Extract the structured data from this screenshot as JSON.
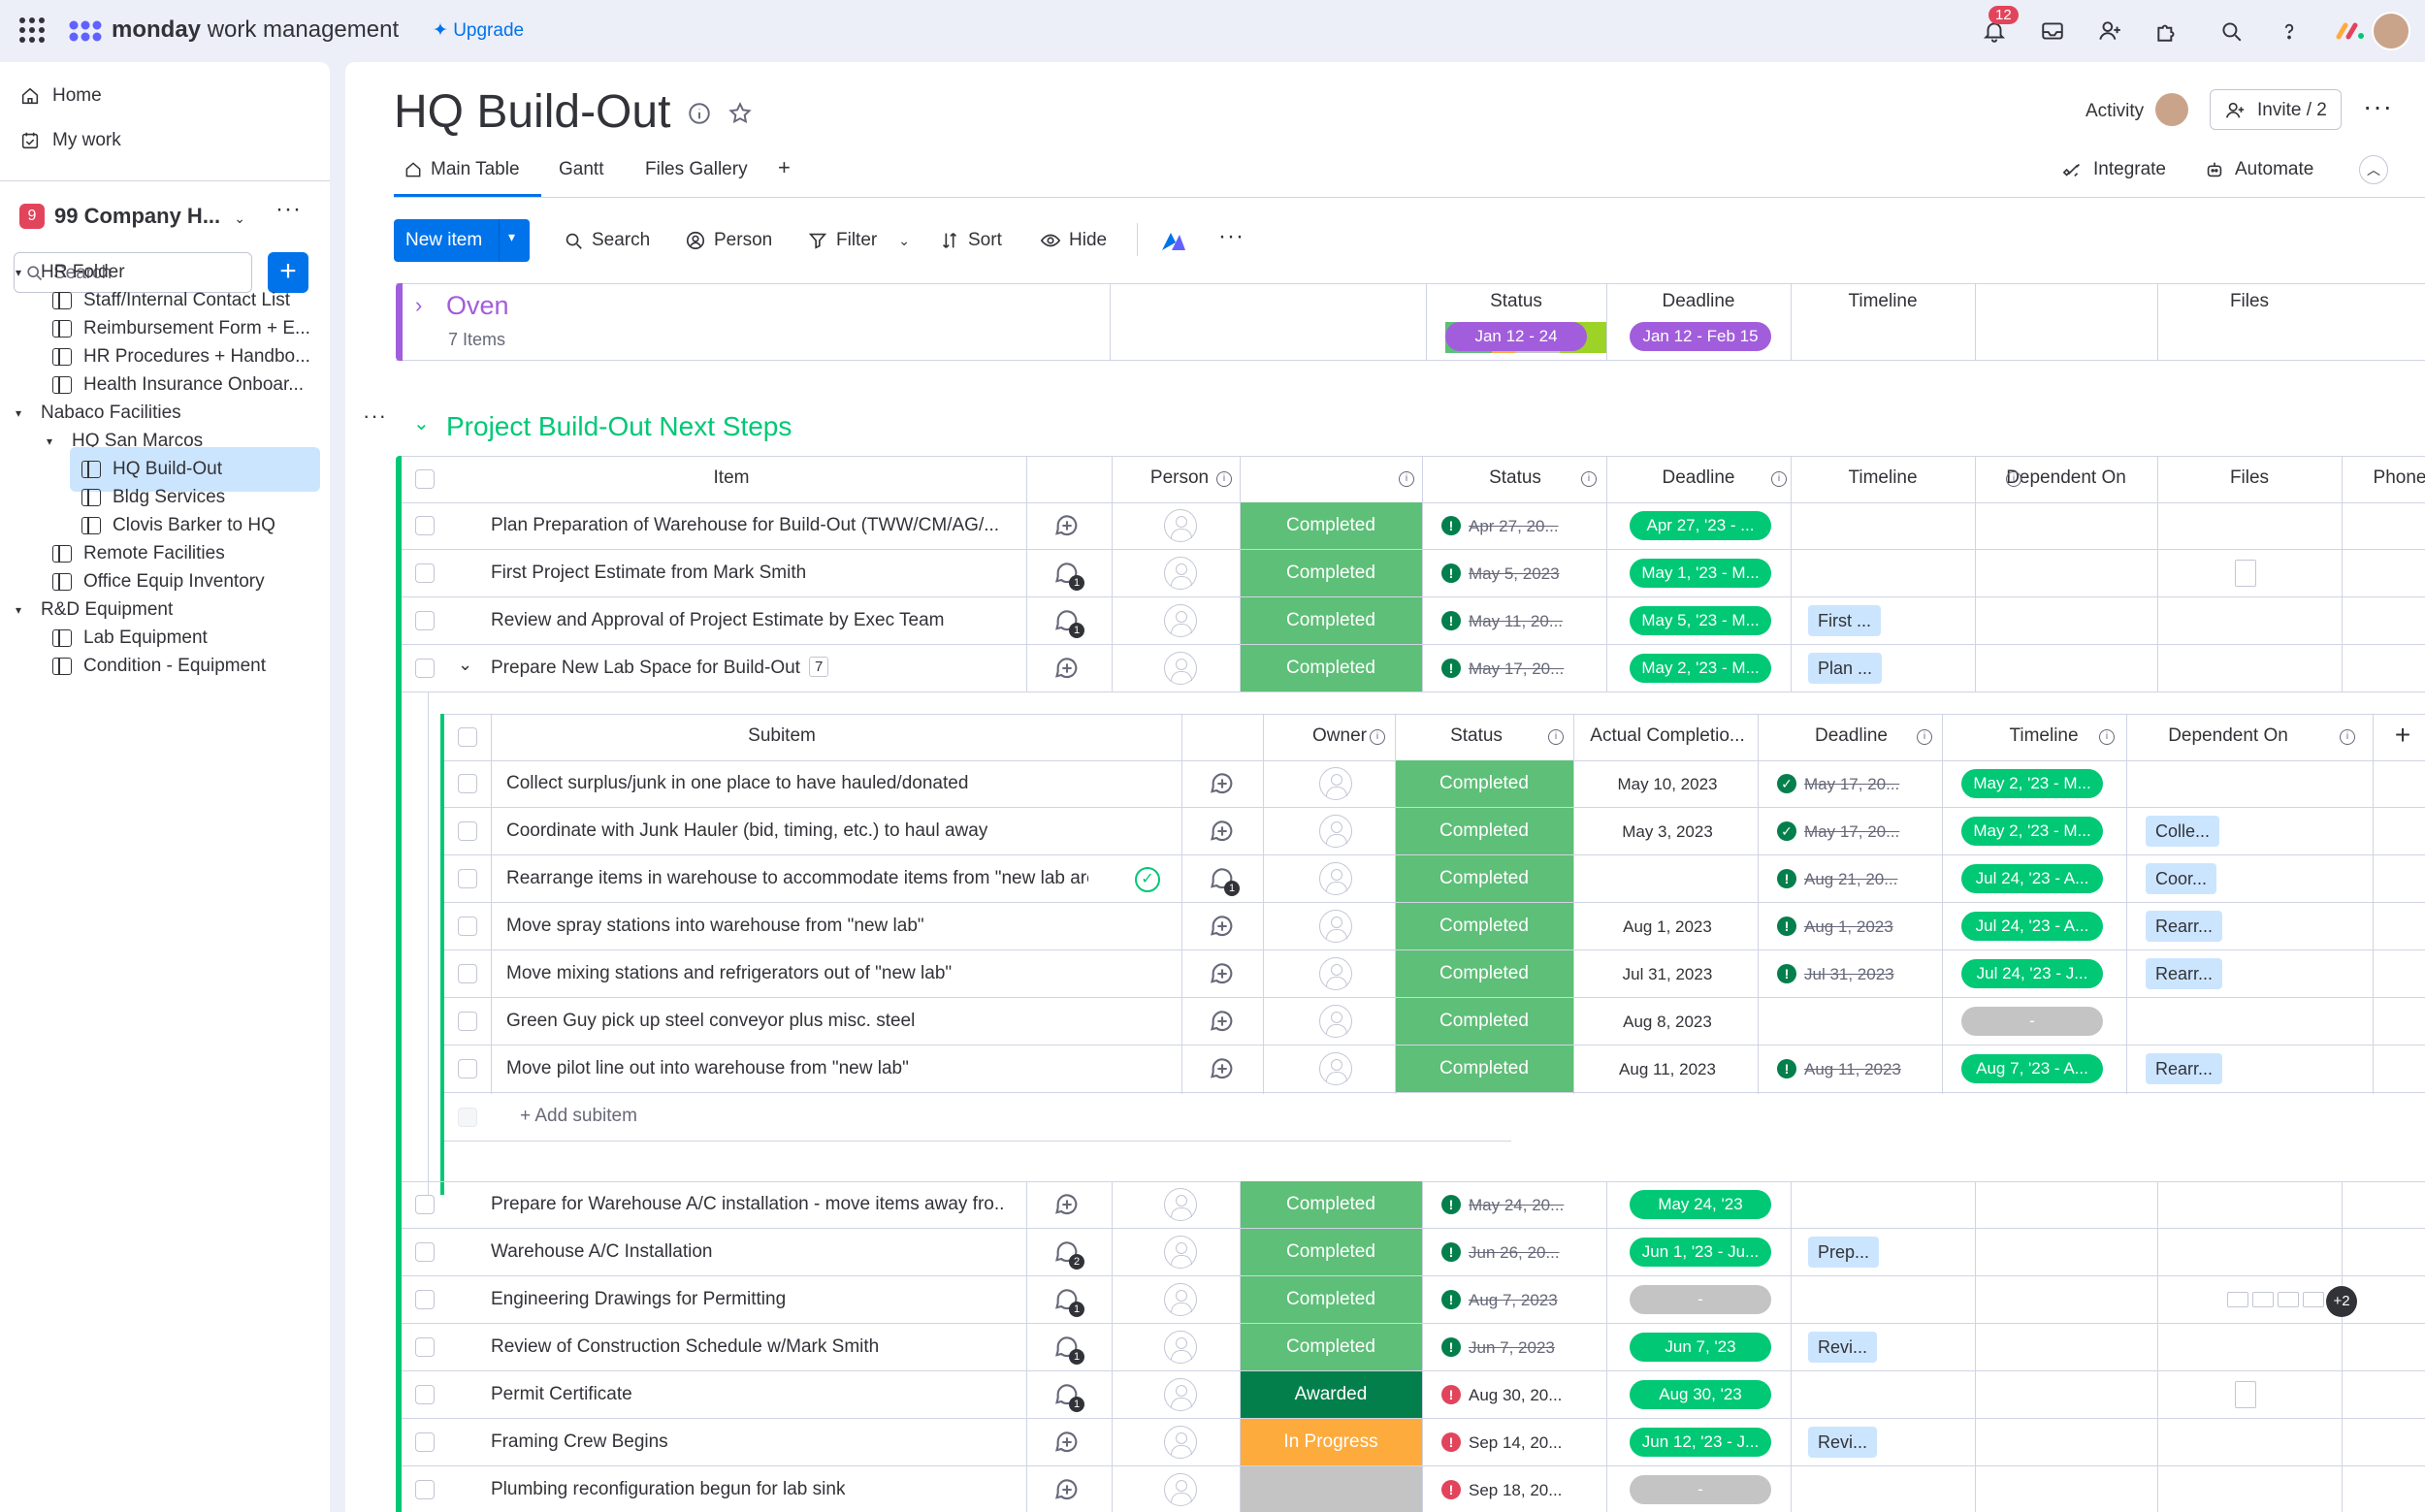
{
  "topbar": {
    "brand_bold": "monday",
    "brand_rest": "work management",
    "upgrade": "Upgrade",
    "notifications_count": "12"
  },
  "sidebar": {
    "home": "Home",
    "my_work": "My work",
    "workspace_initial": "9",
    "workspace_name": "99 Company H...",
    "search_placeholder": "Search",
    "items": [
      {
        "label": "HR Folder",
        "type": "folder"
      },
      {
        "label": "Staff/Internal Contact List",
        "type": "board"
      },
      {
        "label": "Reimbursement Form + E...",
        "type": "board"
      },
      {
        "label": "HR Procedures + Handbo...",
        "type": "board"
      },
      {
        "label": "Health Insurance Onboar...",
        "type": "board"
      },
      {
        "label": "Nabaco Facilities",
        "type": "folder"
      },
      {
        "label": "HQ San Marcos",
        "type": "folder"
      },
      {
        "label": "HQ Build-Out",
        "type": "board",
        "active": true
      },
      {
        "label": "Bldg Services",
        "type": "board"
      },
      {
        "label": "Clovis Barker to HQ",
        "type": "board"
      },
      {
        "label": "Remote Facilities",
        "type": "board"
      },
      {
        "label": "Office Equip Inventory",
        "type": "board"
      },
      {
        "label": "R&D Equipment",
        "type": "folder"
      },
      {
        "label": "Lab Equipment",
        "type": "board"
      },
      {
        "label": "Condition - Equipment",
        "type": "board"
      }
    ]
  },
  "board": {
    "title": "HQ Build-Out",
    "activity": "Activity",
    "invite": "Invite / 2",
    "tabs": [
      "Main Table",
      "Gantt",
      "Files Gallery",
      "+"
    ],
    "integrate": "Integrate",
    "automate": "Automate",
    "toolbar": {
      "new_item": "New item",
      "search": "Search",
      "person": "Person",
      "filter": "Filter",
      "sort": "Sort",
      "hide": "Hide"
    }
  },
  "collapsed_group": {
    "name": "Oven",
    "count": "7 Items",
    "columns": [
      "Status",
      "Deadline",
      "Timeline",
      "Files"
    ],
    "deadline": "Jan 12 - 24",
    "timeline": "Jan 12 - Feb 15",
    "color": "#a25ddc"
  },
  "group": {
    "name": "Project Build-Out Next Steps",
    "color": "#00c875",
    "columns": [
      "Item",
      "Person",
      "Status",
      "Deadline",
      "Timeline",
      "Dependent On",
      "Files",
      "Phone"
    ],
    "rows_top": [
      {
        "item": "Plan Preparation of Warehouse for Build-Out (TWW/CM/AG/...",
        "updates": "",
        "status": "Completed",
        "deadline": "Apr 27, 20...",
        "dl_state": "overdue-done",
        "timeline": "Apr 27, '23 - ...",
        "dep": "",
        "files": false
      },
      {
        "item": "First Project Estimate from Mark Smith",
        "updates": "1",
        "status": "Completed",
        "deadline": "May 5, 2023",
        "dl_state": "overdue-done",
        "timeline": "May 1, '23 - M...",
        "dep": "",
        "files": true
      },
      {
        "item": "Review and Approval of Project Estimate by Exec Team",
        "updates": "1",
        "status": "Completed",
        "deadline": "May 11, 20...",
        "dl_state": "overdue-done",
        "timeline": "May 5, '23 - M...",
        "dep": "First ...",
        "files": false
      },
      {
        "item": "Prepare New Lab Space for Build-Out",
        "subcount": "7",
        "updates": "",
        "status": "Completed",
        "deadline": "May 17, 20...",
        "dl_state": "overdue-done",
        "timeline": "May 2, '23 - M...",
        "dep": "Plan ...",
        "files": false
      }
    ],
    "sub_columns": [
      "Subitem",
      "Owner",
      "Status",
      "Actual Completio...",
      "Deadline",
      "Timeline",
      "Dependent On",
      "+"
    ],
    "subitems": [
      {
        "item": "Collect surplus/junk in one place to have hauled/donated",
        "updates": "",
        "status": "Completed",
        "actual": "May 10, 2023",
        "deadline": "May 17, 20...",
        "dl_state": "done",
        "timeline": "May 2, '23 - M...",
        "dep": ""
      },
      {
        "item": "Coordinate with Junk Hauler (bid, timing, etc.) to haul away",
        "updates": "",
        "status": "Completed",
        "actual": "May 3, 2023",
        "deadline": "May 17, 20...",
        "dl_state": "done",
        "timeline": "May 2, '23 - M...",
        "dep": "Colle..."
      },
      {
        "item": "Rearrange items in warehouse to accommodate items from \"new lab area\"",
        "updates": "1",
        "checked": true,
        "status": "Completed",
        "actual": "",
        "deadline": "Aug 21, 20...",
        "dl_state": "overdue-done",
        "timeline": "Jul 24, '23 - A...",
        "dep": "Coor..."
      },
      {
        "item": "Move spray stations into warehouse from \"new lab\"",
        "updates": "",
        "status": "Completed",
        "actual": "Aug 1, 2023",
        "deadline": "Aug 1, 2023",
        "dl_state": "overdue-done",
        "timeline": "Jul 24, '23 - A...",
        "dep": "Rearr..."
      },
      {
        "item": "Move mixing stations and refrigerators out of \"new lab\"",
        "updates": "",
        "status": "Completed",
        "actual": "Jul 31, 2023",
        "deadline": "Jul 31, 2023",
        "dl_state": "overdue-done",
        "timeline": "Jul 24, '23 - J...",
        "dep": "Rearr..."
      },
      {
        "item": "Green Guy pick up steel conveyor plus misc. steel",
        "updates": "",
        "status": "Completed",
        "actual": "Aug 8, 2023",
        "deadline": "",
        "dl_state": "",
        "timeline": "-",
        "dep": ""
      },
      {
        "item": "Move pilot line out into warehouse from \"new lab\"",
        "updates": "",
        "status": "Completed",
        "actual": "Aug 11, 2023",
        "deadline": "Aug 11, 2023",
        "dl_state": "overdue-done",
        "timeline": "Aug 7, '23 - A...",
        "dep": "Rearr..."
      }
    ],
    "add_subitem": "+ Add subitem",
    "rows_bottom": [
      {
        "item": "Prepare for Warehouse A/C installation - move items away fro...",
        "updates": "",
        "status": "Completed",
        "deadline": "May 24, 20...",
        "dl_state": "overdue-done",
        "timeline": "May 24, '23",
        "dep": "",
        "files": ""
      },
      {
        "item": "Warehouse A/C Installation",
        "updates": "2",
        "status": "Completed",
        "deadline": "Jun 26, 20...",
        "dl_state": "overdue-done",
        "timeline": "Jun 1, '23 - Ju...",
        "dep": "Prep...",
        "files": ""
      },
      {
        "item": "Engineering Drawings for Permitting",
        "updates": "1",
        "status": "Completed",
        "deadline": "Aug 7, 2023",
        "dl_state": "overdue-done",
        "timeline": "-",
        "dep": "",
        "files": "+2"
      },
      {
        "item": "Review of Construction Schedule w/Mark Smith",
        "updates": "1",
        "status": "Completed",
        "deadline": "Jun 7, 2023",
        "dl_state": "overdue-done",
        "timeline": "Jun 7, '23",
        "dep": "Revi...",
        "files": ""
      },
      {
        "item": "Permit Certificate",
        "updates": "1",
        "status": "Awarded",
        "deadline": "Aug 30, 20...",
        "dl_state": "overdue",
        "timeline": "Aug 30, '23",
        "dep": "",
        "files": "1"
      },
      {
        "item": "Framing Crew Begins",
        "updates": "",
        "status": "In Progress",
        "deadline": "Sep 14, 20...",
        "dl_state": "overdue",
        "timeline": "Jun 12, '23 - J...",
        "dep": "Revi...",
        "files": ""
      },
      {
        "item": "Plumbing reconfiguration begun for lab sink",
        "updates": "",
        "status": "",
        "deadline": "Sep 18, 20...",
        "dl_state": "overdue",
        "timeline": "-",
        "dep": "",
        "files": ""
      }
    ]
  },
  "colors": {
    "accent": "#0073ea",
    "completed": "#00c875",
    "status_green": "#5ebf78",
    "awarded": "#037f4c",
    "in_progress": "#fdab3d",
    "empty": "#c4c4c4",
    "overdue_red": "#e2445c",
    "dl_green": "#037f4c"
  }
}
